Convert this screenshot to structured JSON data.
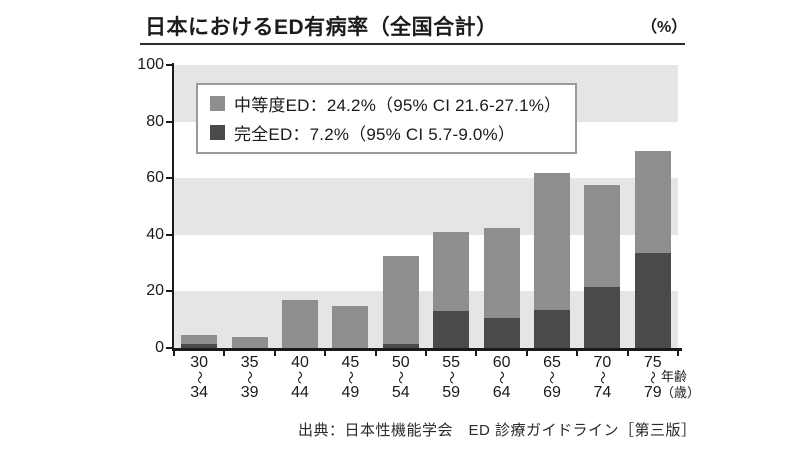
{
  "title": "日本におけるED有病率（全国合計）",
  "unit_label": "（%）",
  "legend": {
    "items": [
      {
        "label": "中等度ED：24.2%（95% CI 21.6-27.1%）",
        "color": "#8e8e8e"
      },
      {
        "label": "完全ED：7.2%（95% CI 5.7-9.0%）",
        "color": "#4a4a4a"
      }
    ]
  },
  "age_axis_note": {
    "line1": "年齢",
    "line2": "（歳）"
  },
  "source": "出典：日本性機能学会　ED 診療ガイドライン［第三版］",
  "colors": {
    "moderate_bar": "#8e8e8e",
    "complete_bar": "#4a4a4a",
    "band_gray": "#e5e5e5",
    "axis": "#1a1a1a"
  },
  "chart_data": {
    "type": "bar",
    "stacked": true,
    "title": "日本におけるED有病率（全国合計）",
    "ylabel": "（%）",
    "xlabel": "年齢（歳）",
    "ylim": [
      0,
      100
    ],
    "yticks": [
      0,
      20,
      40,
      60,
      80,
      100
    ],
    "grid": "alternating horizontal gray bands every 20 units (0-20, 40-60, 80-100 shaded)",
    "legend_position": "upper left inside plot",
    "categories": [
      {
        "from": "30",
        "to": "34"
      },
      {
        "from": "35",
        "to": "39"
      },
      {
        "from": "40",
        "to": "44"
      },
      {
        "from": "45",
        "to": "49"
      },
      {
        "from": "50",
        "to": "54"
      },
      {
        "from": "55",
        "to": "59"
      },
      {
        "from": "60",
        "to": "64"
      },
      {
        "from": "65",
        "to": "69"
      },
      {
        "from": "70",
        "to": "74"
      },
      {
        "from": "75",
        "to": "79"
      }
    ],
    "series": [
      {
        "name": "完全ED",
        "color": "#4a4a4a",
        "values": [
          1.5,
          0,
          0,
          0,
          1.5,
          13,
          10.5,
          13.5,
          21.5,
          33.5
        ]
      },
      {
        "name": "中等度ED",
        "color": "#8e8e8e",
        "values": [
          3,
          4,
          17,
          15,
          31,
          28,
          32,
          48.5,
          36,
          36
        ]
      }
    ],
    "stacked_totals": [
      4.5,
      4,
      17,
      15,
      32.5,
      41,
      42.5,
      62,
      57.5,
      69.5
    ]
  }
}
